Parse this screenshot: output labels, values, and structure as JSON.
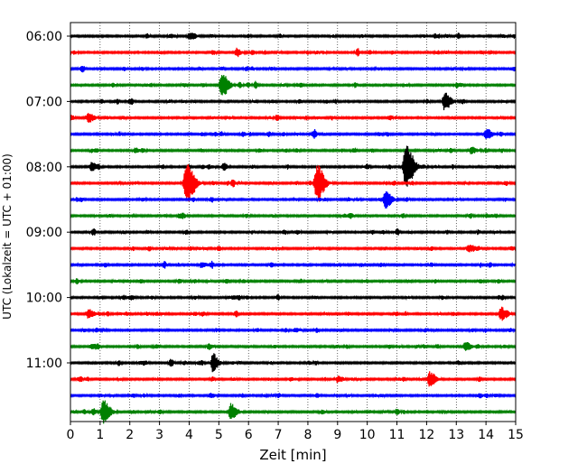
{
  "chart_data": {
    "type": "line",
    "title": "",
    "xlabel": "Zeit  [min]",
    "ylabel": "UTC (Lokalzeit = UTC + 01:00)",
    "xlim": [
      0,
      15
    ],
    "x_ticks": [
      0,
      1,
      2,
      3,
      4,
      5,
      6,
      7,
      8,
      9,
      10,
      11,
      12,
      13,
      14,
      15
    ],
    "x_tick_labels": [
      "0",
      "1",
      "2",
      "3",
      "4",
      "5",
      "6",
      "7",
      "8",
      "9",
      "10",
      "11",
      "12",
      "13",
      "14",
      "15"
    ],
    "y_ticks": [
      {
        "row": 0,
        "label": "06:00"
      },
      {
        "row": 4,
        "label": "07:00"
      },
      {
        "row": 8,
        "label": "08:00"
      },
      {
        "row": 12,
        "label": "09:00"
      },
      {
        "row": 16,
        "label": "10:00"
      },
      {
        "row": 20,
        "label": "11:00"
      }
    ],
    "grid": "vertical dotted at each minute",
    "row_colors": [
      "#000000",
      "#ff0000",
      "#0000ff",
      "#008000"
    ],
    "rows": [
      {
        "start": "06:00",
        "events": [
          {
            "t": 4.0,
            "amp": 0.18
          }
        ]
      },
      {
        "start": "06:15",
        "events": [
          {
            "t": 5.6,
            "amp": 0.15
          }
        ]
      },
      {
        "start": "06:30",
        "events": []
      },
      {
        "start": "06:45",
        "events": [
          {
            "t": 5.1,
            "amp": 0.75
          }
        ]
      },
      {
        "start": "07:00",
        "events": [
          {
            "t": 12.6,
            "amp": 0.55
          }
        ]
      },
      {
        "start": "07:15",
        "events": [
          {
            "t": 0.6,
            "amp": 0.28
          }
        ]
      },
      {
        "start": "07:30",
        "events": [
          {
            "t": 14.0,
            "amp": 0.35
          }
        ]
      },
      {
        "start": "07:45",
        "events": [
          {
            "t": 13.5,
            "amp": 0.2
          }
        ]
      },
      {
        "start": "08:00",
        "events": [
          {
            "t": 0.7,
            "amp": 0.25
          },
          {
            "t": 11.3,
            "amp": 1.3
          }
        ]
      },
      {
        "start": "08:15",
        "events": [
          {
            "t": 3.9,
            "amp": 1.2
          },
          {
            "t": 8.3,
            "amp": 1.1
          }
        ]
      },
      {
        "start": "08:30",
        "events": [
          {
            "t": 10.6,
            "amp": 0.55
          }
        ]
      },
      {
        "start": "08:45",
        "events": []
      },
      {
        "start": "09:00",
        "events": []
      },
      {
        "start": "09:15",
        "events": [
          {
            "t": 13.4,
            "amp": 0.2
          }
        ]
      },
      {
        "start": "09:30",
        "events": [
          {
            "t": 4.4,
            "amp": 0.15
          }
        ]
      },
      {
        "start": "09:45",
        "events": []
      },
      {
        "start": "10:00",
        "events": []
      },
      {
        "start": "10:15",
        "events": [
          {
            "t": 0.6,
            "amp": 0.28
          },
          {
            "t": 14.5,
            "amp": 0.35
          }
        ]
      },
      {
        "start": "10:30",
        "events": []
      },
      {
        "start": "10:45",
        "events": [
          {
            "t": 13.3,
            "amp": 0.3
          }
        ]
      },
      {
        "start": "11:00",
        "events": [
          {
            "t": 4.8,
            "amp": 0.4
          }
        ]
      },
      {
        "start": "11:15",
        "events": [
          {
            "t": 12.1,
            "amp": 0.45
          },
          {
            "t": 9.0,
            "amp": 0.2
          }
        ]
      },
      {
        "start": "11:30",
        "events": [
          {
            "t": 4.7,
            "amp": 0.12
          }
        ]
      },
      {
        "start": "11:45",
        "events": [
          {
            "t": 1.1,
            "amp": 0.75
          },
          {
            "t": 5.4,
            "amp": 0.5
          }
        ]
      }
    ]
  }
}
